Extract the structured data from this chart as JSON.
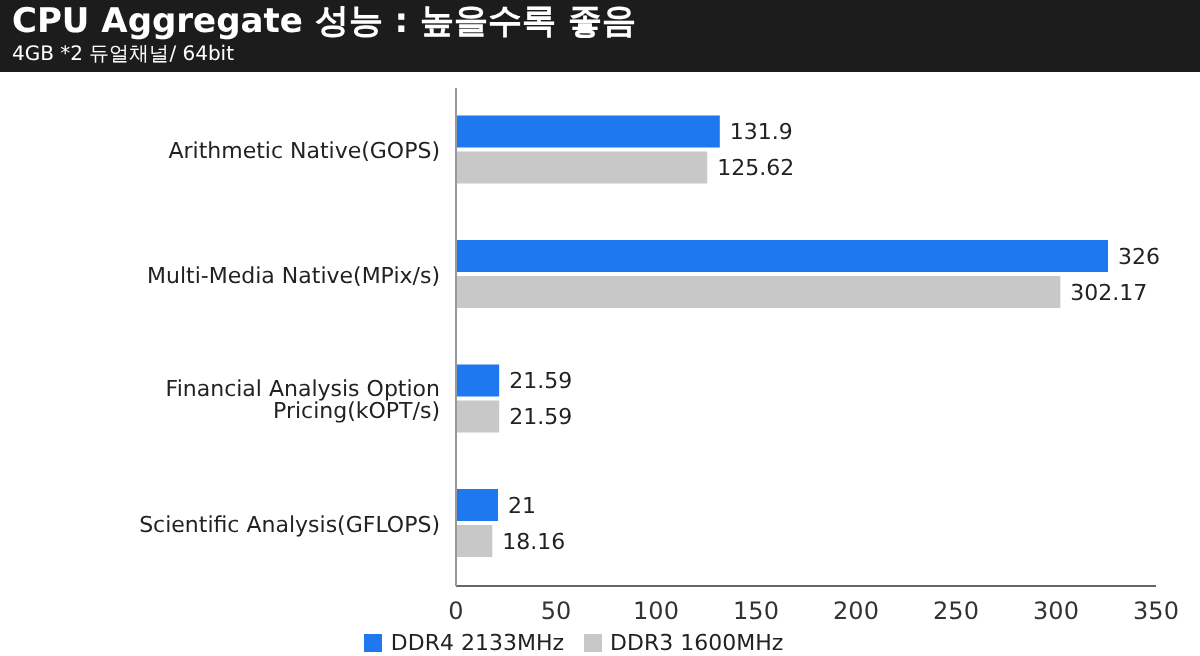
{
  "chart_data": {
    "type": "bar",
    "orientation": "horizontal",
    "title": "CPU Aggregate 성능 : 높을수록 좋음",
    "subtitle": "4GB *2 듀얼채널/ 64bit",
    "categories": [
      "Arithmetic Native(GOPS)",
      "Multi-Media Native(MPix/s)",
      "Financial Analysis Option Pricing(kOPT/s)",
      "Scientific Analysis(GFLOPS)"
    ],
    "series": [
      {
        "name": "DDR4 2133MHz",
        "color": "#1e78f0",
        "values": [
          131.9,
          326,
          21.59,
          21
        ]
      },
      {
        "name": "DDR3 1600MHz",
        "color": "#c8c8c8",
        "values": [
          125.62,
          302.17,
          21.59,
          18.16
        ]
      }
    ],
    "xlim": [
      0,
      350
    ],
    "xticks": [
      0,
      50,
      100,
      150,
      200,
      250,
      300,
      350
    ],
    "data_labels": true,
    "legend": "bottom",
    "grid": false
  }
}
